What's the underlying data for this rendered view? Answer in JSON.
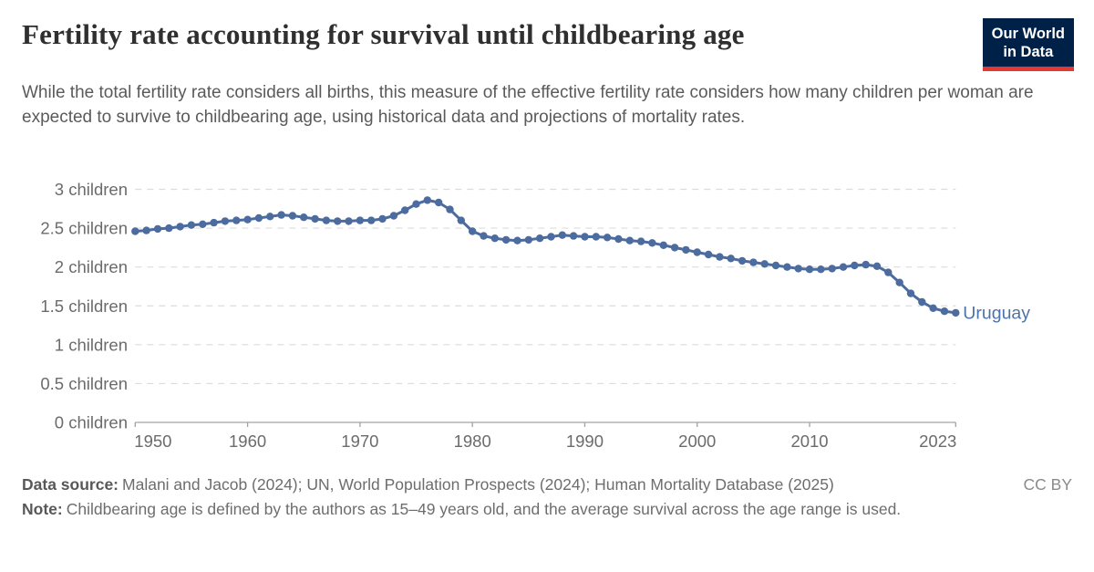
{
  "header": {
    "title": "Fertility rate accounting for survival until childbearing age",
    "subtitle": "While the total fertility rate considers all births, this measure of the effective fertility rate considers how many children per woman are expected to survive to childbearing age, using historical data and projections of mortality rates.",
    "logo": {
      "line1": "Our World",
      "line2": "in Data"
    }
  },
  "chart_data": {
    "type": "line",
    "title": "Fertility rate accounting for survival until childbearing age",
    "xlabel": "",
    "ylabel": "children",
    "xlim": [
      1950,
      2023
    ],
    "ylim": [
      0,
      3
    ],
    "grid": "horizontal-dashed",
    "legend_position": "end-of-line-label",
    "x_ticks": [
      {
        "v": 1950,
        "label": "1950"
      },
      {
        "v": 1960,
        "label": "1960"
      },
      {
        "v": 1970,
        "label": "1970"
      },
      {
        "v": 1980,
        "label": "1980"
      },
      {
        "v": 1990,
        "label": "1990"
      },
      {
        "v": 2000,
        "label": "2000"
      },
      {
        "v": 2010,
        "label": "2010"
      },
      {
        "v": 2023,
        "label": "2023"
      }
    ],
    "y_ticks": [
      {
        "v": 0,
        "label": "0 children"
      },
      {
        "v": 0.5,
        "label": "0.5 children"
      },
      {
        "v": 1,
        "label": "1 children"
      },
      {
        "v": 1.5,
        "label": "1.5 children"
      },
      {
        "v": 2,
        "label": "2 children"
      },
      {
        "v": 2.5,
        "label": "2.5 children"
      },
      {
        "v": 3,
        "label": "3 children"
      }
    ],
    "x": [
      1950,
      1951,
      1952,
      1953,
      1954,
      1955,
      1956,
      1957,
      1958,
      1959,
      1960,
      1961,
      1962,
      1963,
      1964,
      1965,
      1966,
      1967,
      1968,
      1969,
      1970,
      1971,
      1972,
      1973,
      1974,
      1975,
      1976,
      1977,
      1978,
      1979,
      1980,
      1981,
      1982,
      1983,
      1984,
      1985,
      1986,
      1987,
      1988,
      1989,
      1990,
      1991,
      1992,
      1993,
      1994,
      1995,
      1996,
      1997,
      1998,
      1999,
      2000,
      2001,
      2002,
      2003,
      2004,
      2005,
      2006,
      2007,
      2008,
      2009,
      2010,
      2011,
      2012,
      2013,
      2014,
      2015,
      2016,
      2017,
      2018,
      2019,
      2020,
      2021,
      2022,
      2023
    ],
    "series": [
      {
        "name": "Uruguay",
        "color": "#4C6B9F",
        "values": [
          2.46,
          2.47,
          2.49,
          2.5,
          2.52,
          2.54,
          2.55,
          2.57,
          2.59,
          2.6,
          2.61,
          2.63,
          2.65,
          2.67,
          2.66,
          2.64,
          2.62,
          2.6,
          2.59,
          2.59,
          2.6,
          2.6,
          2.62,
          2.66,
          2.73,
          2.81,
          2.86,
          2.83,
          2.74,
          2.6,
          2.46,
          2.4,
          2.37,
          2.35,
          2.34,
          2.35,
          2.37,
          2.39,
          2.41,
          2.4,
          2.39,
          2.39,
          2.38,
          2.36,
          2.34,
          2.33,
          2.31,
          2.28,
          2.25,
          2.22,
          2.19,
          2.16,
          2.13,
          2.11,
          2.08,
          2.06,
          2.04,
          2.02,
          2.0,
          1.98,
          1.97,
          1.97,
          1.98,
          2.0,
          2.02,
          2.03,
          2.01,
          1.93,
          1.8,
          1.66,
          1.55,
          1.47,
          1.43,
          1.41
        ]
      }
    ]
  },
  "footer": {
    "data_source_label": "Data source:",
    "data_source_text": "Malani and Jacob (2024); UN, World Population Prospects (2024); Human Mortality Database (2025)",
    "license": "CC BY",
    "note_label": "Note:",
    "note_text": "Childbearing age is defined by the authors as 15–49 years old, and the average survival across the age range is used."
  },
  "colors": {
    "line": "#4C6B9F",
    "entity_label": "#4E73A9",
    "grid": "#dcdcdc",
    "axis": "#a3a3a3",
    "tick_text": "#6b6b6b",
    "logo_bg": "#002147",
    "logo_bar": "#e03931"
  }
}
